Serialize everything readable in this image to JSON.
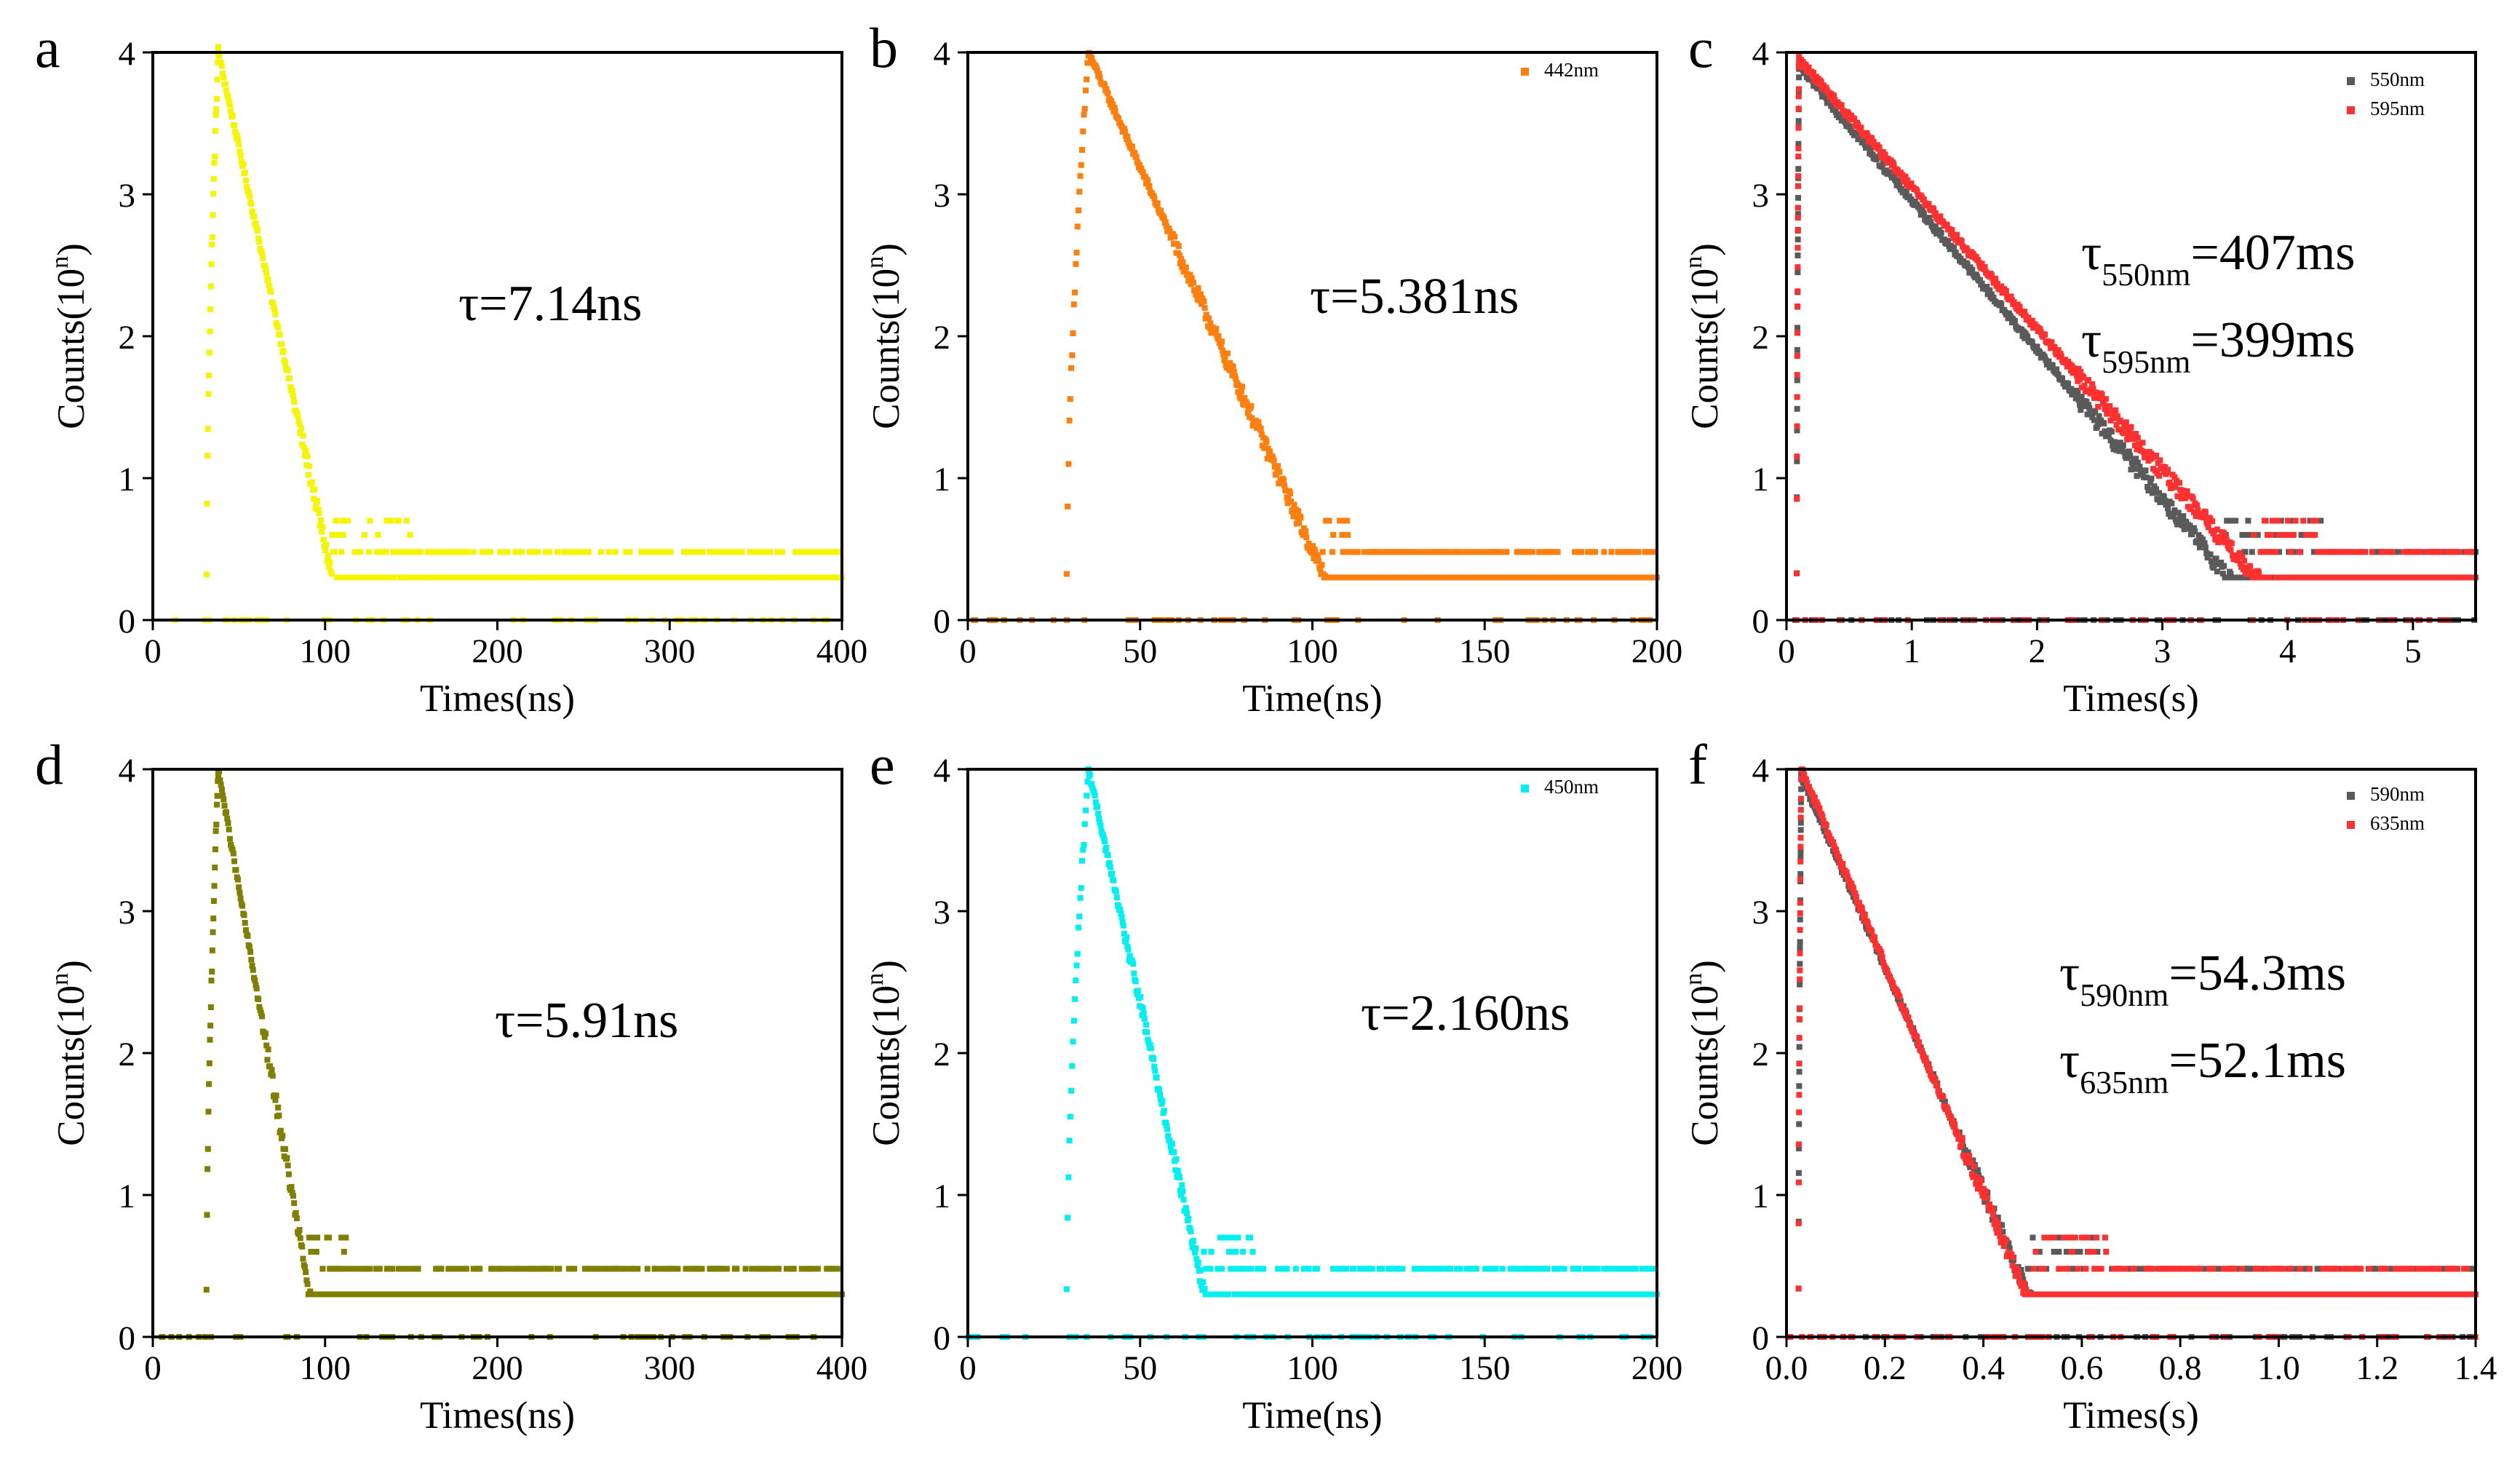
{
  "chart_data": [
    {
      "panel": "a",
      "type": "scatter",
      "xlabel": "Times(ns)",
      "ylabel": "Counts(10^n)",
      "xlim": [
        0,
        400
      ],
      "ylim": [
        0,
        4
      ],
      "xticks": [
        0,
        100,
        200,
        300,
        400
      ],
      "yticks": [
        0,
        1,
        2,
        3,
        4
      ],
      "annotation": {
        "main": "τ=7.14ns"
      },
      "legend": [],
      "series": [
        {
          "name": "",
          "color": "#F5F500",
          "peak_x": 38,
          "peak_y": 4.0,
          "decay_per_unit": 0.056,
          "floor": 0.3,
          "noise_end_x": 115,
          "x_end": 400
        }
      ]
    },
    {
      "panel": "b",
      "type": "scatter",
      "xlabel": "Time(ns)",
      "ylabel": "Counts(10^n)",
      "xlim": [
        0,
        200
      ],
      "ylim": [
        0,
        4
      ],
      "xticks": [
        0,
        50,
        100,
        150,
        200
      ],
      "yticks": [
        0,
        1,
        2,
        3,
        4
      ],
      "annotation": {
        "main": "τ=5.381ns"
      },
      "legend": [
        {
          "label": "442nm",
          "color": "#FF7F0E"
        }
      ],
      "series": [
        {
          "name": "442nm",
          "color": "#FF7F0E",
          "peak_x": 35,
          "peak_y": 4.0,
          "decay_per_unit": 0.054,
          "floor": 0.3,
          "noise_end_x": 85,
          "x_end": 200
        }
      ]
    },
    {
      "panel": "c",
      "type": "scatter",
      "xlabel": "Times(s)",
      "ylabel": "Counts(10^n)",
      "xlim": [
        0,
        5.5
      ],
      "ylim": [
        0,
        4
      ],
      "xticks": [
        0,
        1,
        2,
        3,
        4,
        5
      ],
      "yticks": [
        0,
        1,
        2,
        3,
        4
      ],
      "annotation": {
        "line1_base": "τ",
        "line1_sub": "550nm",
        "line1_val": "=407ms",
        "line2_base": "τ",
        "line2_sub": "595nm",
        "line2_val": "=399ms"
      },
      "legend": [
        {
          "label": "550nm",
          "color": "#5A5A5A"
        },
        {
          "label": "595nm",
          "color": "#FF3030"
        }
      ],
      "series": [
        {
          "name": "550nm",
          "color": "#5A5A5A",
          "peak_x": 0.1,
          "peak_y": 3.9,
          "decay_per_unit": 1.05,
          "floor": 0.3,
          "noise_end_x": 3.3,
          "x_end": 5.5
        },
        {
          "name": "595nm",
          "color": "#FF3030",
          "peak_x": 0.1,
          "peak_y": 3.95,
          "decay_per_unit": 1.0,
          "floor": 0.3,
          "noise_end_x": 3.3,
          "x_end": 5.5
        }
      ]
    },
    {
      "panel": "d",
      "type": "scatter",
      "xlabel": "Times(ns)",
      "ylabel": "Counts(10^n)",
      "xlim": [
        0,
        400
      ],
      "ylim": [
        0,
        4
      ],
      "xticks": [
        0,
        100,
        200,
        300,
        400
      ],
      "yticks": [
        0,
        1,
        2,
        3,
        4
      ],
      "annotation": {
        "main": "τ=5.91ns"
      },
      "legend": [],
      "series": [
        {
          "name": "",
          "color": "#808000",
          "peak_x": 38,
          "peak_y": 4.0,
          "decay_per_unit": 0.07,
          "floor": 0.3,
          "noise_end_x": 90,
          "x_end": 400
        }
      ]
    },
    {
      "panel": "e",
      "type": "scatter",
      "xlabel": "Time(ns)",
      "ylabel": "Counts(10^n)",
      "xlim": [
        0,
        200
      ],
      "ylim": [
        0,
        4
      ],
      "xticks": [
        0,
        50,
        100,
        150,
        200
      ],
      "yticks": [
        0,
        1,
        2,
        3,
        4
      ],
      "annotation": {
        "main": "τ=2.160ns"
      },
      "legend": [
        {
          "label": "450nm",
          "color": "#00F0F0"
        }
      ],
      "series": [
        {
          "name": "450nm",
          "color": "#00F0F0",
          "peak_x": 35,
          "peak_y": 4.0,
          "decay_per_unit": 0.11,
          "floor": 0.3,
          "noise_end_x": 65,
          "x_end": 200
        }
      ]
    },
    {
      "panel": "f",
      "type": "scatter",
      "xlabel": "Times(s)",
      "ylabel": "Counts(10^n)",
      "xlim": [
        0,
        1.4
      ],
      "ylim": [
        0,
        4
      ],
      "xticks": [
        "0.0",
        "0.2",
        "0.4",
        "0.6",
        "0.8",
        "1.0",
        "1.2",
        "1.4"
      ],
      "yticks": [
        0,
        1,
        2,
        3,
        4
      ],
      "annotation": {
        "line1_base": "τ",
        "line1_sub": "590nm",
        "line1_val": "=54.3ms",
        "line2_base": "τ",
        "line2_sub": "635nm",
        "line2_val": "=52.1ms"
      },
      "legend": [
        {
          "label": "590nm",
          "color": "#5A5A5A"
        },
        {
          "label": "635nm",
          "color": "#FF3030"
        }
      ],
      "series": [
        {
          "name": "590nm",
          "color": "#5A5A5A",
          "peak_x": 0.03,
          "peak_y": 3.95,
          "decay_per_unit": 7.9,
          "floor": 0.3,
          "noise_end_x": 0.5,
          "x_end": 1.4
        },
        {
          "name": "635nm",
          "color": "#FF3030",
          "peak_x": 0.03,
          "peak_y": 4.0,
          "decay_per_unit": 8.1,
          "floor": 0.3,
          "noise_end_x": 0.5,
          "x_end": 1.4
        }
      ]
    }
  ]
}
